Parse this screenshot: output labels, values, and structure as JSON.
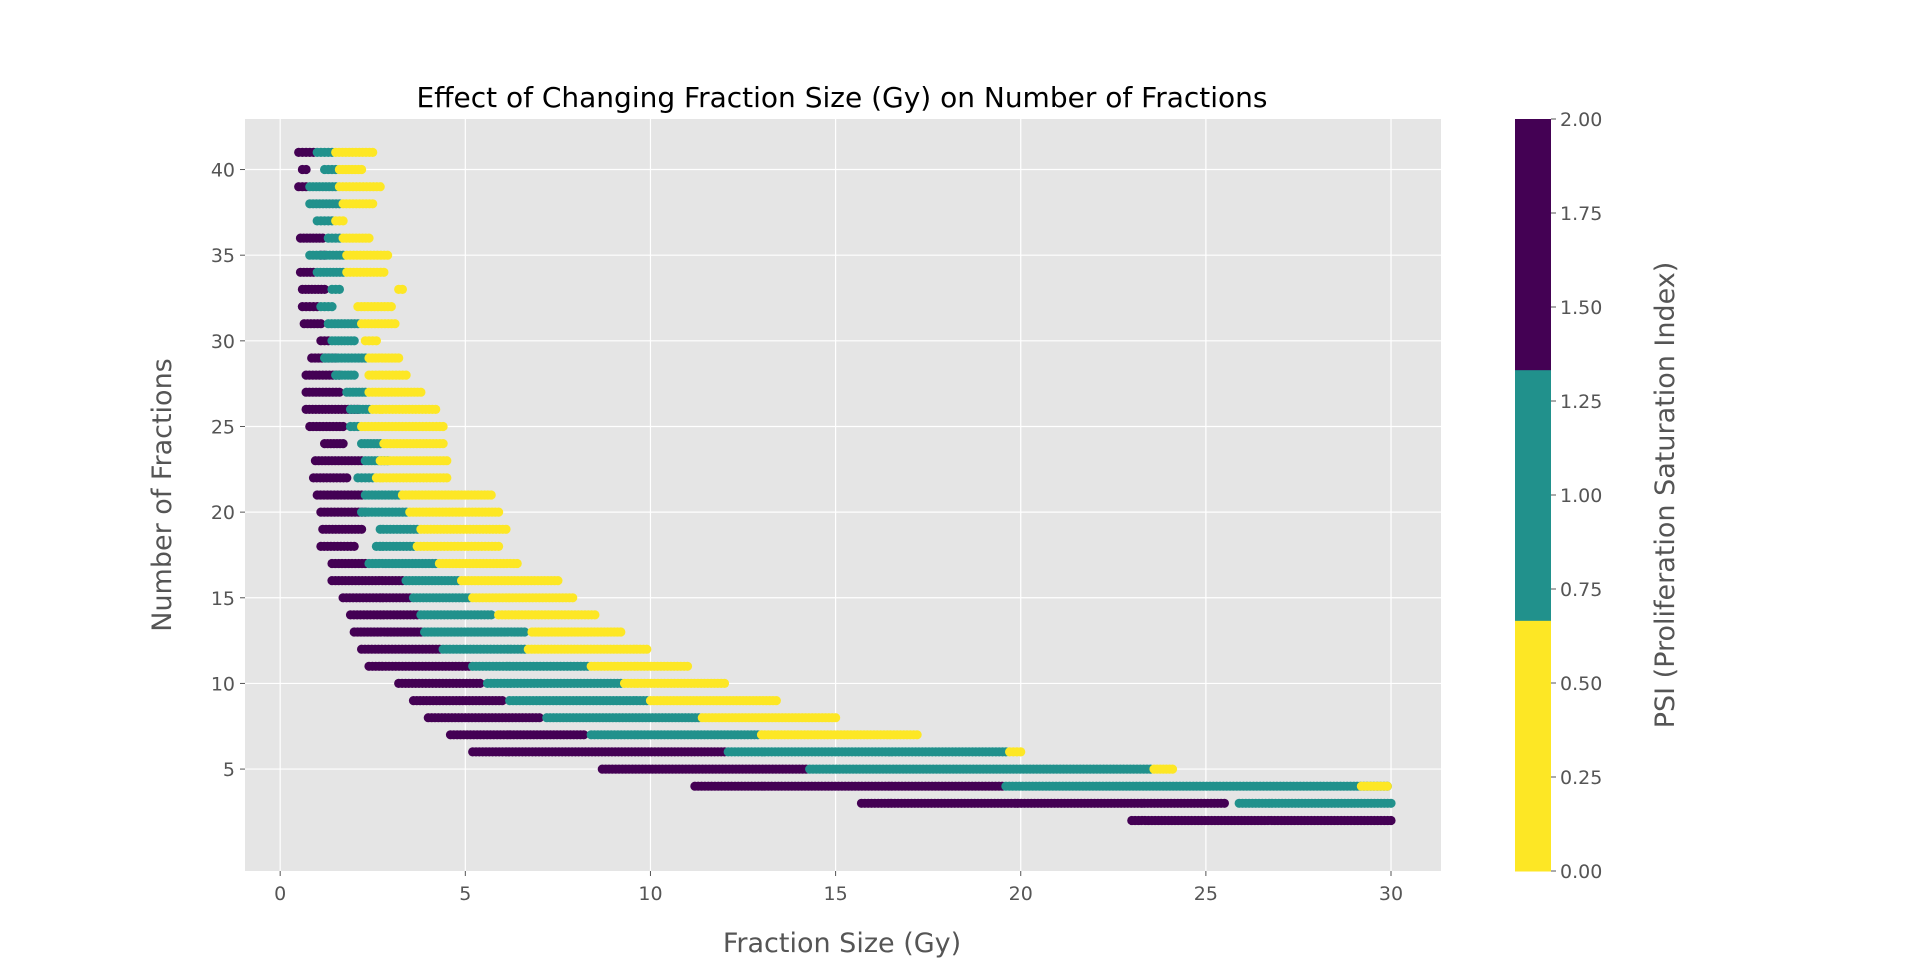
{
  "chart_data": {
    "type": "scatter",
    "title": "Effect of Changing Fraction Size (Gy) on Number of Fractions",
    "xlabel": "Fraction Size (Gy)",
    "ylabel": "Number of Fractions",
    "xlim": [
      -0.95,
      31.35
    ],
    "ylim": [
      -0.95,
      42.95
    ],
    "x_ticks": [
      0,
      5,
      10,
      15,
      20,
      25,
      30
    ],
    "y_ticks": [
      5,
      10,
      15,
      20,
      25,
      30,
      35,
      40
    ],
    "grid": true,
    "background": "#e5e5e5",
    "colorbar": {
      "label": "PSI (Proliferation Saturation Index)",
      "range": [
        0,
        2
      ],
      "ticks": [
        "0.00",
        "0.25",
        "0.50",
        "0.75",
        "1.00",
        "1.25",
        "1.50",
        "1.75",
        "2.00"
      ],
      "bands": [
        {
          "from": 0,
          "to": 0.6667,
          "color": "#fde725"
        },
        {
          "from": 0.6667,
          "to": 1.3333,
          "color": "#21918c"
        },
        {
          "from": 1.3333,
          "to": 2.0,
          "color": "#440154"
        }
      ]
    },
    "point_colors": {
      "low": "#fde725",
      "mid": "#21918c",
      "high": "#440154"
    },
    "series": [
      {
        "psi_band": "high",
        "rows": [
          {
            "y": 41,
            "x": [
              0.5,
              0.9
            ]
          },
          {
            "y": 40,
            "x": [
              0.6,
              0.7
            ]
          },
          {
            "y": 39,
            "x": [
              0.5,
              0.7
            ]
          },
          {
            "y": 36,
            "x": [
              0.55,
              1.15
            ]
          },
          {
            "y": 35,
            "x": [
              1.1,
              1.2
            ]
          },
          {
            "y": 34,
            "x": [
              0.55,
              0.9
            ]
          },
          {
            "y": 33,
            "x": [
              0.6,
              1.2
            ]
          },
          {
            "y": 32,
            "x": [
              0.6,
              1.0
            ]
          },
          {
            "y": 31,
            "x": [
              0.65,
              1.1
            ]
          },
          {
            "y": 30,
            "x": [
              1.1,
              1.3
            ]
          },
          {
            "y": 29,
            "x": [
              0.85,
              1.5
            ]
          },
          {
            "y": 28,
            "x": [
              0.7,
              1.6
            ]
          },
          {
            "y": 27,
            "x": [
              0.7,
              1.6
            ]
          },
          {
            "y": 26,
            "x": [
              0.7,
              2.1
            ]
          },
          {
            "y": 25,
            "x": [
              0.8,
              1.7
            ]
          },
          {
            "y": 24,
            "x": [
              1.2,
              1.7
            ]
          },
          {
            "y": 23,
            "x": [
              0.95,
              2.2
            ]
          },
          {
            "y": 22,
            "x": [
              0.9,
              1.8
            ]
          },
          {
            "y": 21,
            "x": [
              1.0,
              2.2
            ]
          },
          {
            "y": 20,
            "x": [
              1.1,
              2.3
            ]
          },
          {
            "y": 19,
            "x": [
              1.15,
              2.2
            ]
          },
          {
            "y": 18,
            "x": [
              1.1,
              2.0
            ]
          },
          {
            "y": 17,
            "x": [
              1.4,
              2.3
            ]
          },
          {
            "y": 16,
            "x": [
              1.4,
              3.3
            ]
          },
          {
            "y": 15,
            "x": [
              1.7,
              3.5
            ]
          },
          {
            "y": 14,
            "x": [
              1.9,
              3.7
            ]
          },
          {
            "y": 13,
            "x": [
              2.0,
              3.8
            ]
          },
          {
            "y": 12,
            "x": [
              2.2,
              4.3
            ]
          },
          {
            "y": 11,
            "x": [
              2.4,
              5.1
            ]
          },
          {
            "y": 10,
            "x": [
              3.2,
              5.4
            ]
          },
          {
            "y": 9,
            "x": [
              3.6,
              6.0
            ]
          },
          {
            "y": 8,
            "x": [
              4.0,
              7.0
            ]
          },
          {
            "y": 7,
            "x": [
              4.6,
              8.2
            ]
          },
          {
            "y": 6,
            "x": [
              5.2,
              12.0
            ]
          },
          {
            "y": 5,
            "x": [
              8.7,
              14.2
            ]
          },
          {
            "y": 4,
            "x": [
              11.2,
              19.5
            ]
          },
          {
            "y": 3,
            "x": [
              15.7,
              25.5
            ]
          },
          {
            "y": 2,
            "x": [
              23.0,
              30.0
            ]
          }
        ]
      },
      {
        "psi_band": "mid",
        "rows": [
          {
            "y": 41,
            "x": [
              1.0,
              1.4
            ]
          },
          {
            "y": 40,
            "x": [
              1.2,
              1.5
            ]
          },
          {
            "y": 39,
            "x": [
              0.8,
              1.5
            ]
          },
          {
            "y": 38,
            "x": [
              0.8,
              1.6
            ]
          },
          {
            "y": 37,
            "x": [
              1.0,
              1.4
            ]
          },
          {
            "y": 36,
            "x": [
              1.3,
              1.6
            ]
          },
          {
            "y": 35,
            "x": [
              0.8,
              1.7
            ]
          },
          {
            "y": 34,
            "x": [
              1.0,
              1.7
            ]
          },
          {
            "y": 33,
            "x": [
              1.4,
              1.6
            ]
          },
          {
            "y": 32,
            "x": [
              1.1,
              1.4
            ]
          },
          {
            "y": 31,
            "x": [
              1.3,
              2.1
            ]
          },
          {
            "y": 30,
            "x": [
              1.4,
              2.0
            ]
          },
          {
            "y": 29,
            "x": [
              1.2,
              2.3
            ]
          },
          {
            "y": 28,
            "x": [
              1.5,
              2.0
            ]
          },
          {
            "y": 27,
            "x": [
              1.8,
              2.3
            ]
          },
          {
            "y": 26,
            "x": [
              1.9,
              2.4
            ]
          },
          {
            "y": 25,
            "x": [
              1.9,
              2.1
            ]
          },
          {
            "y": 24,
            "x": [
              2.2,
              2.7
            ]
          },
          {
            "y": 23,
            "x": [
              2.3,
              2.9
            ]
          },
          {
            "y": 22,
            "x": [
              2.1,
              2.5
            ]
          },
          {
            "y": 21,
            "x": [
              2.3,
              3.2
            ]
          },
          {
            "y": 20,
            "x": [
              2.2,
              3.4
            ]
          },
          {
            "y": 19,
            "x": [
              2.7,
              3.7
            ]
          },
          {
            "y": 18,
            "x": [
              2.6,
              3.6
            ]
          },
          {
            "y": 17,
            "x": [
              2.4,
              4.2
            ]
          },
          {
            "y": 16,
            "x": [
              3.4,
              4.8
            ]
          },
          {
            "y": 15,
            "x": [
              3.6,
              5.1
            ]
          },
          {
            "y": 14,
            "x": [
              3.8,
              5.7
            ]
          },
          {
            "y": 13,
            "x": [
              3.9,
              6.6
            ]
          },
          {
            "y": 12,
            "x": [
              4.4,
              6.6
            ]
          },
          {
            "y": 11,
            "x": [
              5.2,
              8.3
            ]
          },
          {
            "y": 10,
            "x": [
              5.6,
              9.2
            ]
          },
          {
            "y": 9,
            "x": [
              6.2,
              9.9
            ]
          },
          {
            "y": 8,
            "x": [
              7.2,
              11.3
            ]
          },
          {
            "y": 7,
            "x": [
              8.4,
              12.9
            ]
          },
          {
            "y": 6,
            "x": [
              12.1,
              19.6
            ]
          },
          {
            "y": 5,
            "x": [
              14.3,
              23.5
            ]
          },
          {
            "y": 4,
            "x": [
              19.6,
              29.9
            ]
          },
          {
            "y": 3,
            "x": [
              25.9,
              30.0
            ]
          }
        ]
      },
      {
        "psi_band": "low",
        "rows": [
          {
            "y": 41,
            "x": [
              1.5,
              2.5
            ]
          },
          {
            "y": 40,
            "x": [
              1.6,
              2.2
            ]
          },
          {
            "y": 39,
            "x": [
              1.6,
              2.7
            ]
          },
          {
            "y": 38,
            "x": [
              1.7,
              2.5
            ]
          },
          {
            "y": 37,
            "x": [
              1.5,
              1.7
            ]
          },
          {
            "y": 36,
            "x": [
              1.7,
              2.4
            ]
          },
          {
            "y": 35,
            "x": [
              1.8,
              2.9
            ]
          },
          {
            "y": 34,
            "x": [
              1.8,
              2.8
            ]
          },
          {
            "y": 33,
            "x": [
              3.2,
              3.3
            ]
          },
          {
            "y": 32,
            "x": [
              2.1,
              3.0
            ]
          },
          {
            "y": 31,
            "x": [
              2.2,
              3.1
            ]
          },
          {
            "y": 30,
            "x": [
              2.3,
              2.6
            ]
          },
          {
            "y": 29,
            "x": [
              2.4,
              3.2
            ]
          },
          {
            "y": 28,
            "x": [
              2.4,
              3.4
            ]
          },
          {
            "y": 27,
            "x": [
              2.4,
              3.8
            ]
          },
          {
            "y": 26,
            "x": [
              2.5,
              4.2
            ]
          },
          {
            "y": 25,
            "x": [
              2.2,
              4.4
            ]
          },
          {
            "y": 24,
            "x": [
              2.8,
              4.4
            ]
          },
          {
            "y": 23,
            "x": [
              2.7,
              4.5
            ]
          },
          {
            "y": 22,
            "x": [
              2.6,
              4.5
            ]
          },
          {
            "y": 21,
            "x": [
              3.3,
              5.7
            ]
          },
          {
            "y": 20,
            "x": [
              3.5,
              5.9
            ]
          },
          {
            "y": 19,
            "x": [
              3.8,
              6.1
            ]
          },
          {
            "y": 18,
            "x": [
              3.7,
              5.9
            ]
          },
          {
            "y": 17,
            "x": [
              4.3,
              6.4
            ]
          },
          {
            "y": 16,
            "x": [
              4.9,
              7.5
            ]
          },
          {
            "y": 15,
            "x": [
              5.2,
              7.9
            ]
          },
          {
            "y": 14,
            "x": [
              5.9,
              8.5
            ]
          },
          {
            "y": 13,
            "x": [
              6.8,
              9.2
            ]
          },
          {
            "y": 12,
            "x": [
              6.7,
              9.9
            ]
          },
          {
            "y": 11,
            "x": [
              8.4,
              11.0
            ]
          },
          {
            "y": 10,
            "x": [
              9.3,
              12.0
            ]
          },
          {
            "y": 9,
            "x": [
              10.0,
              13.4
            ]
          },
          {
            "y": 8,
            "x": [
              11.4,
              15.0
            ]
          },
          {
            "y": 7,
            "x": [
              13.0,
              17.2
            ]
          },
          {
            "y": 6,
            "x": [
              19.7,
              20.0
            ]
          },
          {
            "y": 5,
            "x": [
              23.6,
              24.1
            ]
          },
          {
            "y": 4,
            "x": [
              29.2,
              29.9
            ]
          }
        ]
      }
    ]
  }
}
